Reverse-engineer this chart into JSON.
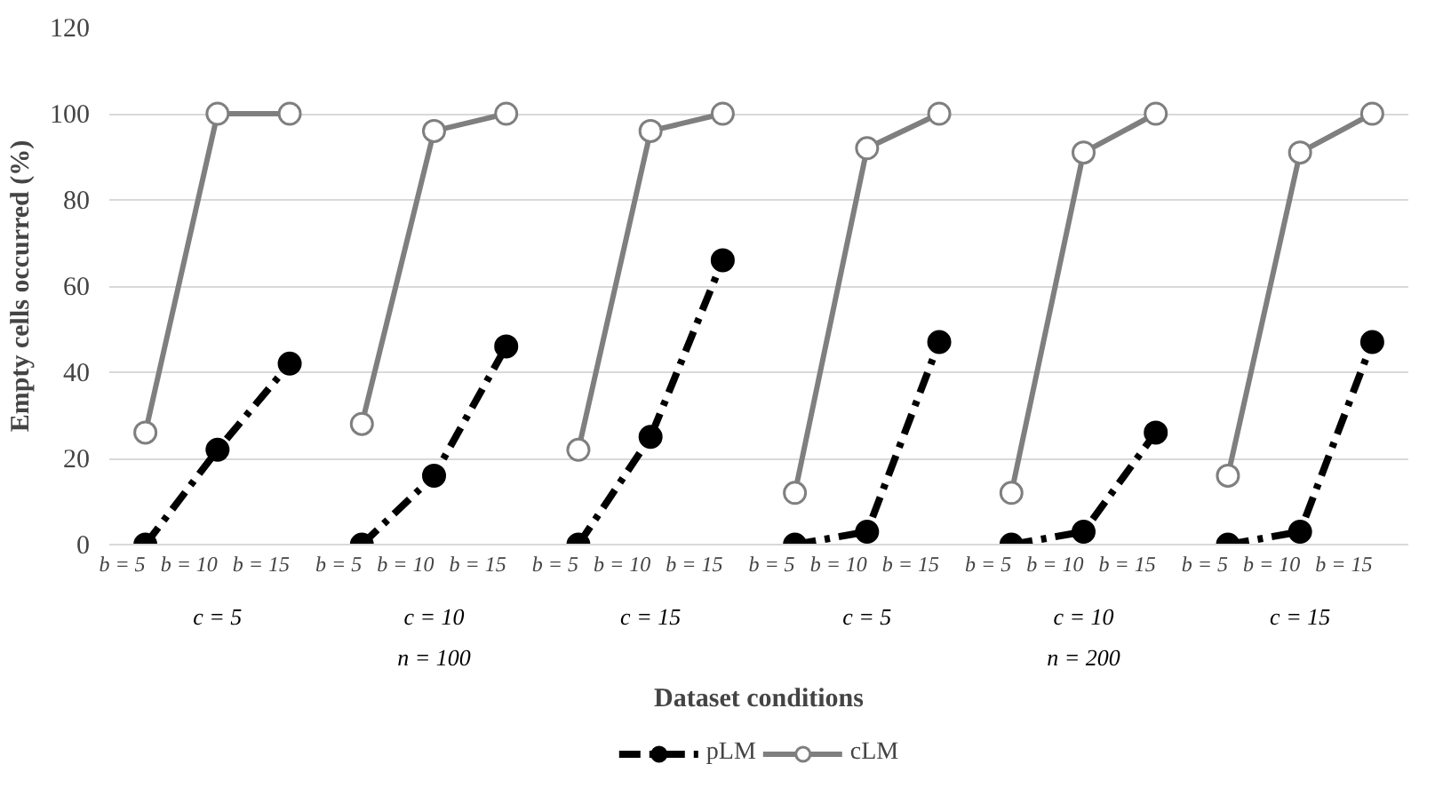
{
  "chart_data": {
    "type": "line",
    "xlabel": "Dataset conditions",
    "ylabel": "Empty cells occurred (%)",
    "categories": [
      "b = 5",
      "b = 10",
      "b = 15",
      "b = 5",
      "b = 10",
      "b = 15",
      "b = 5",
      "b = 10",
      "b = 15",
      "b = 5",
      "b = 10",
      "b = 15",
      "b = 5",
      "b = 10",
      "b = 15",
      "b = 5",
      "b = 10",
      "b = 15"
    ],
    "annotations": [
      "c = 5",
      "c = 10",
      "c = 15",
      "c = 5",
      "c = 10",
      "c = 15",
      "n = 100",
      "n = 200"
    ],
    "series": [
      {
        "name": "pLM",
        "color": "#000000",
        "line_style": "dashed",
        "values": [
          0,
          22,
          42,
          0,
          16,
          46,
          0,
          25,
          66,
          0,
          3,
          47,
          0,
          3,
          26,
          0,
          3,
          47
        ]
      },
      {
        "name": "cLM",
        "color": "#7f7f7f",
        "line_style": "solid",
        "values": [
          26,
          100,
          100,
          28,
          96,
          100,
          22,
          96,
          100,
          12,
          92,
          100,
          12,
          91,
          100,
          16,
          91,
          100
        ]
      }
    ],
    "ylim": [
      0,
      120
    ],
    "yticks": [
      0,
      20,
      40,
      60,
      80,
      100,
      120
    ],
    "grid": "y",
    "legend": "bottom",
    "marker": "circle"
  }
}
